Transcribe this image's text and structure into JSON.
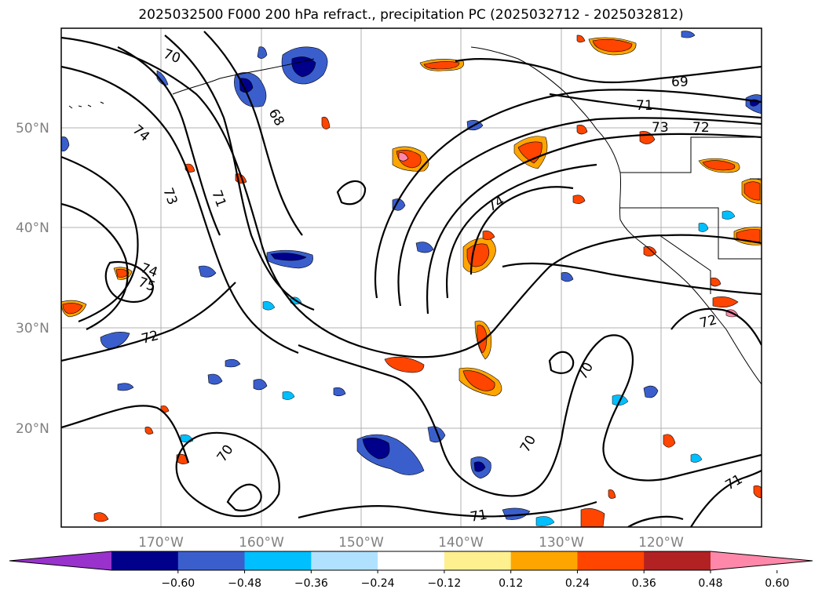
{
  "title": "2025032500 F000 200 hPa refract., precipitation PC (2025032712 - 2025032812)",
  "map": {
    "lat_labels": [
      "50°N",
      "40°N",
      "30°N",
      "20°N"
    ],
    "lon_labels": [
      "170°W",
      "160°W",
      "150°W",
      "140°W",
      "130°W",
      "120°W"
    ]
  },
  "contour_labels": [
    "70",
    "74",
    "73",
    "71",
    "68",
    "69",
    "71",
    "73",
    "72",
    "74",
    "74",
    "75",
    "72",
    "72",
    "70",
    "70",
    "70",
    "71",
    "71"
  ],
  "colorbar": {
    "colors": [
      "#9932cc",
      "#00008b",
      "#3a5fcd",
      "#00bfff",
      "#b0e2ff",
      "#ffffff",
      "#fff08f",
      "#ffa500",
      "#ff4500",
      "#b22222",
      "#ff88aa"
    ],
    "tick_labels": [
      "−0.60",
      "−0.48",
      "−0.36",
      "−0.24",
      "−0.12",
      "0.12",
      "0.24",
      "0.36",
      "0.48",
      "0.60"
    ]
  }
}
